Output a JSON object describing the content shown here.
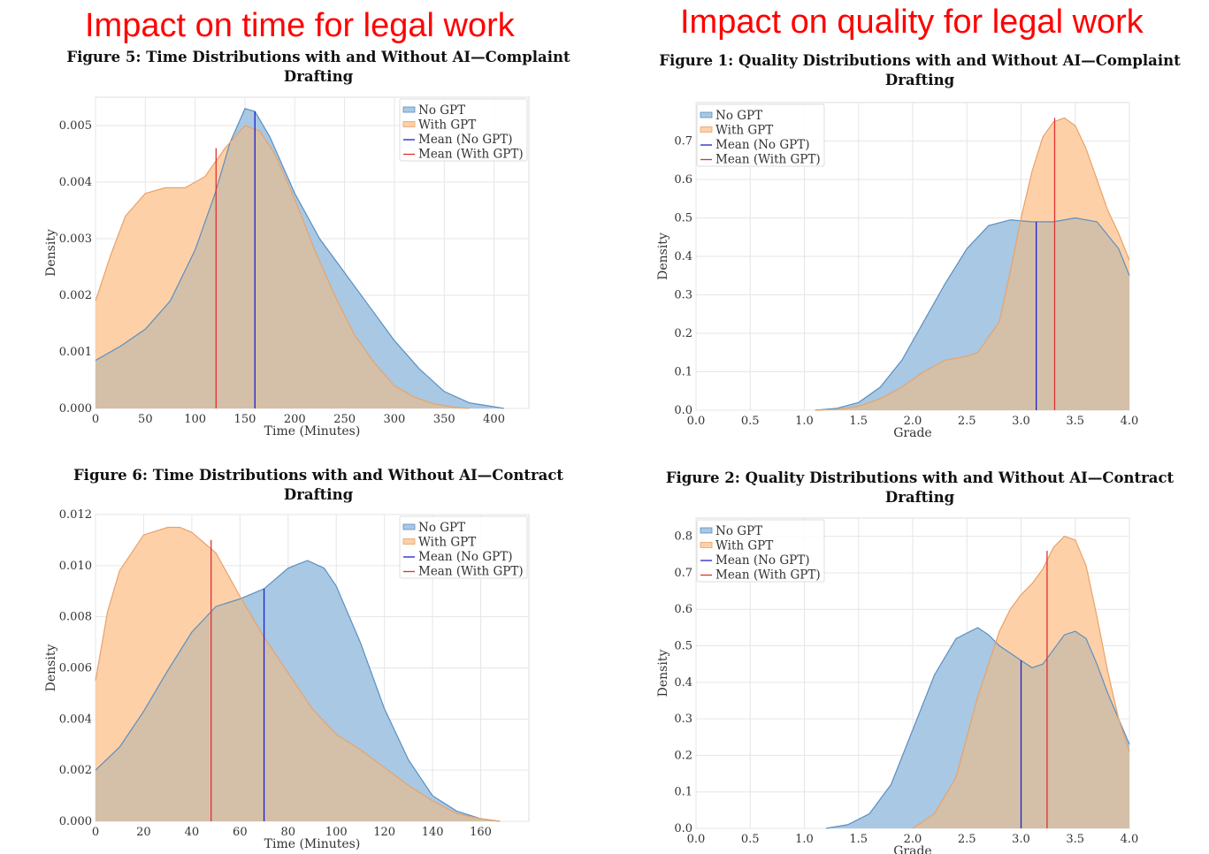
{
  "headings": {
    "left": "Impact on time for legal work",
    "right": "Impact on quality for legal work"
  },
  "colors": {
    "no_gpt_fill": "#a9c8e3",
    "no_gpt_line": "#5b8fc2",
    "with_gpt_fill": "#fdd0a8",
    "with_gpt_line": "#e8a26a",
    "overlap": "#d4c0a8",
    "mean_no_gpt": "#1f1fd0",
    "mean_with_gpt": "#e03030"
  },
  "chart_data": [
    {
      "type": "area",
      "figure_label": "Figure 5: Time Distributions with and Without AI—Complaint",
      "title_line2": "Drafting",
      "xlabel": "Time (Minutes)",
      "ylabel": "Density",
      "xlim": [
        0,
        435
      ],
      "ylim": [
        0,
        0.0055
      ],
      "xticks": [
        0,
        50,
        100,
        150,
        200,
        250,
        300,
        350,
        400
      ],
      "xtick_labels": [
        "0",
        "50",
        "100",
        "150",
        "200",
        "250",
        "300",
        "350",
        "400"
      ],
      "yticks": [
        0,
        0.001,
        0.002,
        0.003,
        0.004,
        0.005
      ],
      "ytick_labels": [
        "0.000",
        "0.001",
        "0.002",
        "0.003",
        "0.004",
        "0.005"
      ],
      "legend": [
        "No GPT",
        "With GPT",
        "Mean (No GPT)",
        "Mean (With GPT)"
      ],
      "legend_position": "top-right",
      "series": [
        {
          "name": "No GPT",
          "x": [
            0,
            25,
            50,
            75,
            100,
            120,
            135,
            150,
            160,
            175,
            200,
            225,
            250,
            275,
            300,
            325,
            350,
            375,
            400,
            410
          ],
          "y": [
            0.00085,
            0.0011,
            0.0014,
            0.0019,
            0.0028,
            0.0038,
            0.0047,
            0.0053,
            0.00525,
            0.0048,
            0.0038,
            0.003,
            0.0024,
            0.0018,
            0.0012,
            0.0007,
            0.0003,
            0.0001,
            3e-05,
            0.0
          ]
        },
        {
          "name": "With GPT",
          "x": [
            0,
            15,
            30,
            50,
            70,
            90,
            110,
            130,
            150,
            165,
            180,
            200,
            220,
            240,
            260,
            280,
            300,
            320,
            340,
            360,
            375
          ],
          "y": [
            0.0019,
            0.0027,
            0.0034,
            0.0038,
            0.0039,
            0.0039,
            0.0041,
            0.0046,
            0.005,
            0.0049,
            0.0045,
            0.0037,
            0.0028,
            0.002,
            0.0013,
            0.0008,
            0.0004,
            0.0002,
            8e-05,
            2e-05,
            0.0
          ]
        }
      ],
      "mean_no_gpt": {
        "x": 160,
        "y": 0.00525
      },
      "mean_with_gpt": {
        "x": 121,
        "y": 0.0046
      }
    },
    {
      "type": "area",
      "figure_label": "Figure 1: Quality Distributions with and Without AI—Complaint",
      "title_line2": "Drafting",
      "xlabel": "Grade",
      "ylabel": "Density",
      "xlim": [
        0,
        4.0
      ],
      "ylim": [
        0,
        0.8
      ],
      "xticks": [
        0,
        0.5,
        1.0,
        1.5,
        2.0,
        2.5,
        3.0,
        3.5,
        4.0
      ],
      "xtick_labels": [
        "0.0",
        "0.5",
        "1.0",
        "1.5",
        "2.0",
        "2.5",
        "3.0",
        "3.5",
        "4.0"
      ],
      "yticks": [
        0,
        0.1,
        0.2,
        0.3,
        0.4,
        0.5,
        0.6,
        0.7
      ],
      "ytick_labels": [
        "0.0",
        "0.1",
        "0.2",
        "0.3",
        "0.4",
        "0.5",
        "0.6",
        "0.7"
      ],
      "legend": [
        "No GPT",
        "With GPT",
        "Mean (No GPT)",
        "Mean (With GPT)"
      ],
      "legend_position": "top-left",
      "series": [
        {
          "name": "No GPT",
          "x": [
            1.1,
            1.3,
            1.5,
            1.7,
            1.9,
            2.1,
            2.3,
            2.5,
            2.7,
            2.9,
            3.1,
            3.3,
            3.5,
            3.7,
            3.9,
            4.0
          ],
          "y": [
            0.0,
            0.005,
            0.02,
            0.06,
            0.13,
            0.23,
            0.33,
            0.42,
            0.48,
            0.495,
            0.49,
            0.49,
            0.5,
            0.49,
            0.42,
            0.35
          ]
        },
        {
          "name": "With GPT",
          "x": [
            1.1,
            1.3,
            1.5,
            1.7,
            1.9,
            2.1,
            2.3,
            2.5,
            2.6,
            2.8,
            2.9,
            3.0,
            3.1,
            3.2,
            3.3,
            3.4,
            3.5,
            3.6,
            3.7,
            3.8,
            3.9,
            4.0
          ],
          "y": [
            0.0,
            0.002,
            0.01,
            0.03,
            0.06,
            0.1,
            0.13,
            0.14,
            0.15,
            0.23,
            0.36,
            0.5,
            0.62,
            0.71,
            0.75,
            0.76,
            0.74,
            0.68,
            0.6,
            0.52,
            0.46,
            0.39
          ]
        }
      ],
      "mean_no_gpt": {
        "x": 3.14,
        "y": 0.49
      },
      "mean_with_gpt": {
        "x": 3.31,
        "y": 0.76
      }
    },
    {
      "type": "area",
      "figure_label": "Figure 6: Time Distributions with and Without AI—Contract",
      "title_line2": "Drafting",
      "xlabel": "Time (Minutes)",
      "ylabel": "Density",
      "xlim": [
        0,
        180
      ],
      "ylim": [
        0,
        0.012
      ],
      "xticks": [
        0,
        20,
        40,
        60,
        80,
        100,
        120,
        140,
        160
      ],
      "xtick_labels": [
        "0",
        "20",
        "40",
        "60",
        "80",
        "100",
        "120",
        "140",
        "160"
      ],
      "yticks": [
        0,
        0.002,
        0.004,
        0.006,
        0.008,
        0.01,
        0.012
      ],
      "ytick_labels": [
        "0.000",
        "0.002",
        "0.004",
        "0.006",
        "0.008",
        "0.010",
        "0.012"
      ],
      "legend": [
        "No GPT",
        "With GPT",
        "Mean (No GPT)",
        "Mean (With GPT)"
      ],
      "legend_position": "top-right",
      "series": [
        {
          "name": "No GPT",
          "x": [
            0,
            10,
            20,
            30,
            40,
            50,
            60,
            70,
            80,
            88,
            95,
            100,
            110,
            120,
            130,
            140,
            150,
            160,
            168
          ],
          "y": [
            0.002,
            0.0029,
            0.0043,
            0.0059,
            0.0074,
            0.0084,
            0.0087,
            0.0091,
            0.0099,
            0.0102,
            0.0099,
            0.0092,
            0.007,
            0.0044,
            0.0024,
            0.001,
            0.0004,
            0.0001,
            0.0
          ]
        },
        {
          "name": "With GPT",
          "x": [
            0,
            5,
            10,
            20,
            30,
            35,
            40,
            50,
            60,
            70,
            80,
            90,
            100,
            110,
            120,
            130,
            140,
            150,
            160,
            168
          ],
          "y": [
            0.0055,
            0.0082,
            0.0098,
            0.0112,
            0.0115,
            0.0115,
            0.0113,
            0.0105,
            0.0088,
            0.0072,
            0.0058,
            0.0044,
            0.0034,
            0.0028,
            0.0021,
            0.0014,
            0.0008,
            0.0003,
            0.0001,
            0.0
          ]
        }
      ],
      "mean_no_gpt": {
        "x": 70,
        "y": 0.0091
      },
      "mean_with_gpt": {
        "x": 48,
        "y": 0.011
      }
    },
    {
      "type": "area",
      "figure_label": "Figure 2: Quality Distributions with and Without AI—Contract",
      "title_line2": "Drafting",
      "xlabel": "Grade",
      "ylabel": "Density",
      "xlim": [
        0,
        4.0
      ],
      "ylim": [
        0,
        0.85
      ],
      "xticks": [
        0,
        0.5,
        1.0,
        1.5,
        2.0,
        2.5,
        3.0,
        3.5,
        4.0
      ],
      "xtick_labels": [
        "0.0",
        "0.5",
        "1.0",
        "1.5",
        "2.0",
        "2.5",
        "3.0",
        "3.5",
        "4.0"
      ],
      "yticks": [
        0,
        0.1,
        0.2,
        0.3,
        0.4,
        0.5,
        0.6,
        0.7,
        0.8
      ],
      "ytick_labels": [
        "0.0",
        "0.1",
        "0.2",
        "0.3",
        "0.4",
        "0.5",
        "0.6",
        "0.7",
        "0.8"
      ],
      "legend": [
        "No GPT",
        "With GPT",
        "Mean (No GPT)",
        "Mean (With GPT)"
      ],
      "legend_position": "top-left",
      "series": [
        {
          "name": "No GPT",
          "x": [
            1.2,
            1.4,
            1.6,
            1.8,
            2.0,
            2.2,
            2.4,
            2.6,
            2.7,
            2.8,
            2.9,
            3.0,
            3.1,
            3.2,
            3.3,
            3.4,
            3.5,
            3.6,
            3.7,
            3.8,
            3.9,
            4.0
          ],
          "y": [
            0.0,
            0.01,
            0.04,
            0.12,
            0.27,
            0.42,
            0.52,
            0.55,
            0.53,
            0.5,
            0.48,
            0.46,
            0.44,
            0.45,
            0.49,
            0.53,
            0.54,
            0.52,
            0.45,
            0.37,
            0.3,
            0.23
          ]
        },
        {
          "name": "With GPT",
          "x": [
            2.0,
            2.2,
            2.4,
            2.6,
            2.7,
            2.8,
            2.9,
            3.0,
            3.1,
            3.2,
            3.3,
            3.4,
            3.5,
            3.6,
            3.7,
            3.8,
            3.9,
            4.0
          ],
          "y": [
            0.0,
            0.04,
            0.14,
            0.36,
            0.45,
            0.54,
            0.6,
            0.64,
            0.67,
            0.71,
            0.77,
            0.8,
            0.79,
            0.72,
            0.58,
            0.43,
            0.3,
            0.21
          ]
        }
      ],
      "mean_no_gpt": {
        "x": 3.0,
        "y": 0.46
      },
      "mean_with_gpt": {
        "x": 3.24,
        "y": 0.76
      }
    }
  ]
}
